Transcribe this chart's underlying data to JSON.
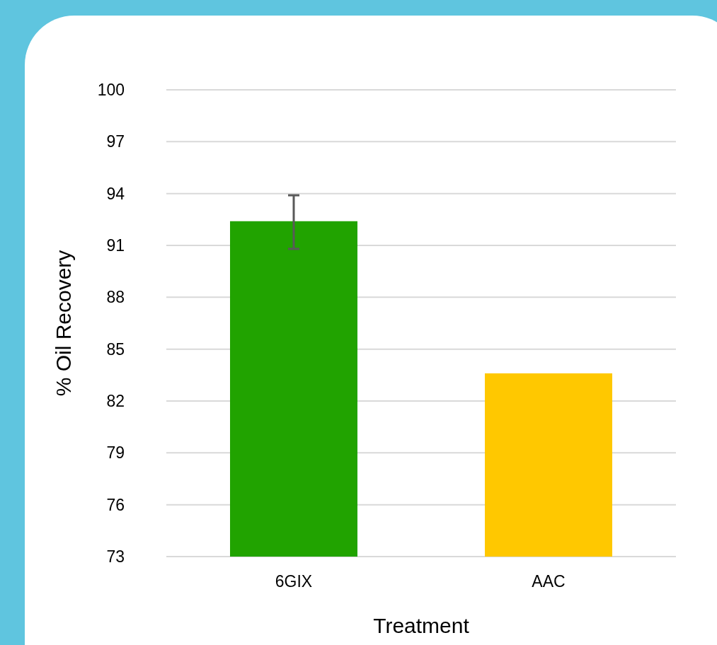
{
  "chart_data": {
    "type": "bar",
    "xlabel": "Treatment",
    "ylabel": "% Oil Recovery",
    "categories": [
      "6GIX",
      "AAC"
    ],
    "values": [
      92.4,
      83.6
    ],
    "colors": [
      "#21a300",
      "#ffc800"
    ],
    "errors": [
      [
        90.8,
        93.9
      ],
      null
    ],
    "ylim": [
      73,
      100
    ],
    "yticks": [
      73,
      76,
      79,
      82,
      85,
      88,
      91,
      94,
      97,
      100
    ],
    "grid": "y"
  }
}
